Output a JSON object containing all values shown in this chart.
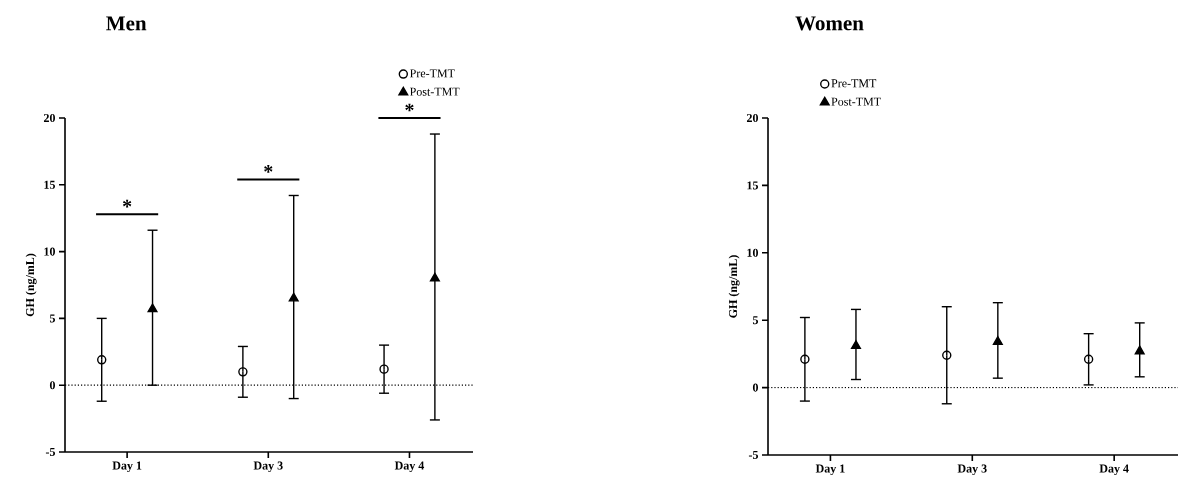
{
  "chart_data": [
    {
      "type": "scatter",
      "title": "Men",
      "ylabel": "GH (ng/mL)",
      "categories": [
        "Day 1",
        "Day 3",
        "Day 4"
      ],
      "series": [
        {
          "name": "Pre-TMT",
          "color": "#000000",
          "marker": "circle",
          "values": [
            1.9,
            1.0,
            1.2
          ],
          "errors": [
            [
              -1.2,
              5.0
            ],
            [
              -0.9,
              2.9
            ],
            [
              -0.6,
              3.0
            ]
          ]
        },
        {
          "name": "Post-TMT",
          "color": "#000000",
          "marker": "triangle",
          "values": [
            5.7,
            6.5,
            8.0
          ],
          "errors": [
            [
              0.0,
              11.6
            ],
            [
              -1.0,
              14.2
            ],
            [
              -2.6,
              18.8
            ]
          ]
        }
      ],
      "ylim": [
        -5,
        20
      ],
      "yticks": [
        -5,
        0,
        5,
        10,
        15,
        20
      ],
      "ref_lines": [
        {
          "axis": "y",
          "value": 0,
          "line_style": "dotted"
        }
      ],
      "legend": "top right",
      "annotations": [
        "*",
        "*",
        "*"
      ]
    },
    {
      "type": "scatter",
      "title": "Women",
      "ylabel": "GH (ng/mL)",
      "categories": [
        "Day 1",
        "Day 3",
        "Day 4"
      ],
      "series": [
        {
          "name": "Pre-TMT",
          "color": "#000000",
          "marker": "circle",
          "values": [
            2.1,
            2.4,
            2.1
          ],
          "errors": [
            [
              -1.0,
              5.2
            ],
            [
              -1.2,
              6.0
            ],
            [
              0.2,
              4.0
            ]
          ]
        },
        {
          "name": "Post-TMT",
          "color": "#000000",
          "marker": "triangle",
          "values": [
            3.1,
            3.4,
            2.7
          ],
          "errors": [
            [
              0.6,
              5.8
            ],
            [
              0.7,
              6.3
            ],
            [
              0.8,
              4.8
            ]
          ]
        }
      ],
      "ylim": [
        -5,
        20
      ],
      "yticks": [
        -5,
        0,
        5,
        10,
        15,
        20
      ],
      "ref_lines": [
        {
          "axis": "y",
          "value": 0,
          "line_style": "dotted"
        }
      ],
      "legend": "top left"
    }
  ]
}
